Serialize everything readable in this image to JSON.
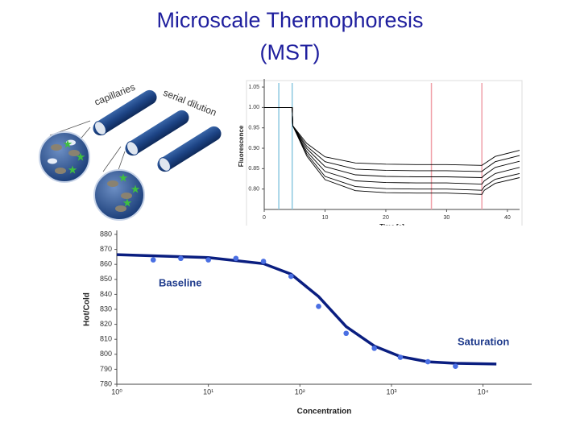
{
  "title": [
    "Microscale Thermophoresis",
    "(MST)"
  ],
  "illustration": {
    "labels": [
      "capillaries",
      "serial dilution"
    ]
  },
  "chart_data": [
    {
      "type": "line",
      "xlabel": "Time [s]",
      "ylabel": "Fluorescence",
      "x": [
        0,
        4.6,
        4.7,
        7,
        10,
        15,
        20,
        25,
        30,
        35.8,
        36.2,
        38,
        42
      ],
      "series": [
        {
          "color": "#000000",
          "values": [
            1.0,
            1.0,
            0.955,
            0.912,
            0.879,
            0.864,
            0.861,
            0.86,
            0.86,
            0.858,
            0.862,
            0.88,
            0.895
          ]
        },
        {
          "color": "#000000",
          "values": [
            1.0,
            1.0,
            0.955,
            0.905,
            0.867,
            0.849,
            0.846,
            0.845,
            0.845,
            0.843,
            0.848,
            0.867,
            0.882
          ]
        },
        {
          "color": "#000000",
          "values": [
            1.0,
            1.0,
            0.955,
            0.899,
            0.855,
            0.835,
            0.831,
            0.83,
            0.83,
            0.828,
            0.834,
            0.853,
            0.868
          ]
        },
        {
          "color": "#000000",
          "values": [
            1.0,
            1.0,
            0.955,
            0.892,
            0.843,
            0.82,
            0.816,
            0.815,
            0.815,
            0.812,
            0.82,
            0.838,
            0.853
          ]
        },
        {
          "color": "#000000",
          "values": [
            1.0,
            1.0,
            0.955,
            0.886,
            0.831,
            0.806,
            0.801,
            0.8,
            0.8,
            0.797,
            0.806,
            0.824,
            0.838
          ]
        },
        {
          "color": "#000000",
          "values": [
            1.0,
            1.0,
            0.955,
            0.881,
            0.823,
            0.796,
            0.791,
            0.79,
            0.79,
            0.787,
            0.797,
            0.814,
            0.828
          ]
        }
      ],
      "vlines": [
        {
          "x": 2.4,
          "color": "#8cc8e0"
        },
        {
          "x": 4.6,
          "color": "#8cc8e0"
        },
        {
          "x": 27.5,
          "color": "#f0a0a8"
        },
        {
          "x": 35.8,
          "color": "#f0a0a8"
        }
      ],
      "xlim": [
        0,
        42
      ],
      "ylim": [
        0.75,
        1.06
      ],
      "xticks": [
        0,
        10,
        20,
        30,
        40
      ],
      "yticks": [
        {
          "value": 0.8,
          "label": "0.80"
        },
        0.85,
        {
          "value": 0.9,
          "label": "0.90"
        },
        0.95,
        {
          "value": 1.0,
          "label": "1.00"
        },
        1.05
      ]
    },
    {
      "type": "scatter",
      "xlabel": "Concentration",
      "ylabel": "Hot/Cold",
      "xscale": "log",
      "color": "#4a6fe3",
      "x": [
        2.5,
        5,
        10,
        20,
        40,
        80,
        160,
        320,
        650,
        1250,
        2500,
        5000
      ],
      "values": [
        863,
        864,
        863,
        864,
        862,
        852,
        832,
        814,
        804,
        798,
        795,
        792
      ],
      "fit": {
        "color": "#0a1e80",
        "x": [
          1,
          10,
          40,
          80,
          160,
          320,
          650,
          1250,
          2500,
          5000,
          14000
        ],
        "values": [
          866.5,
          864.5,
          860.5,
          853.5,
          838.5,
          818.5,
          805.5,
          798.5,
          795,
          794,
          793.5
        ]
      },
      "annotations": [
        "Baseline",
        "Saturation"
      ],
      "xlim": [
        1,
        34000
      ],
      "ylim": [
        780,
        880
      ],
      "xticks": [
        {
          "value": 1,
          "label": "10⁰"
        },
        {
          "value": 10,
          "label": "10¹"
        },
        {
          "value": 100,
          "label": "10²"
        },
        {
          "value": 1000,
          "label": "10³"
        },
        {
          "value": 10000,
          "label": "10⁴"
        }
      ],
      "yticks": [
        780,
        790,
        800,
        810,
        820,
        830,
        840,
        850,
        860,
        870,
        880
      ]
    }
  ]
}
